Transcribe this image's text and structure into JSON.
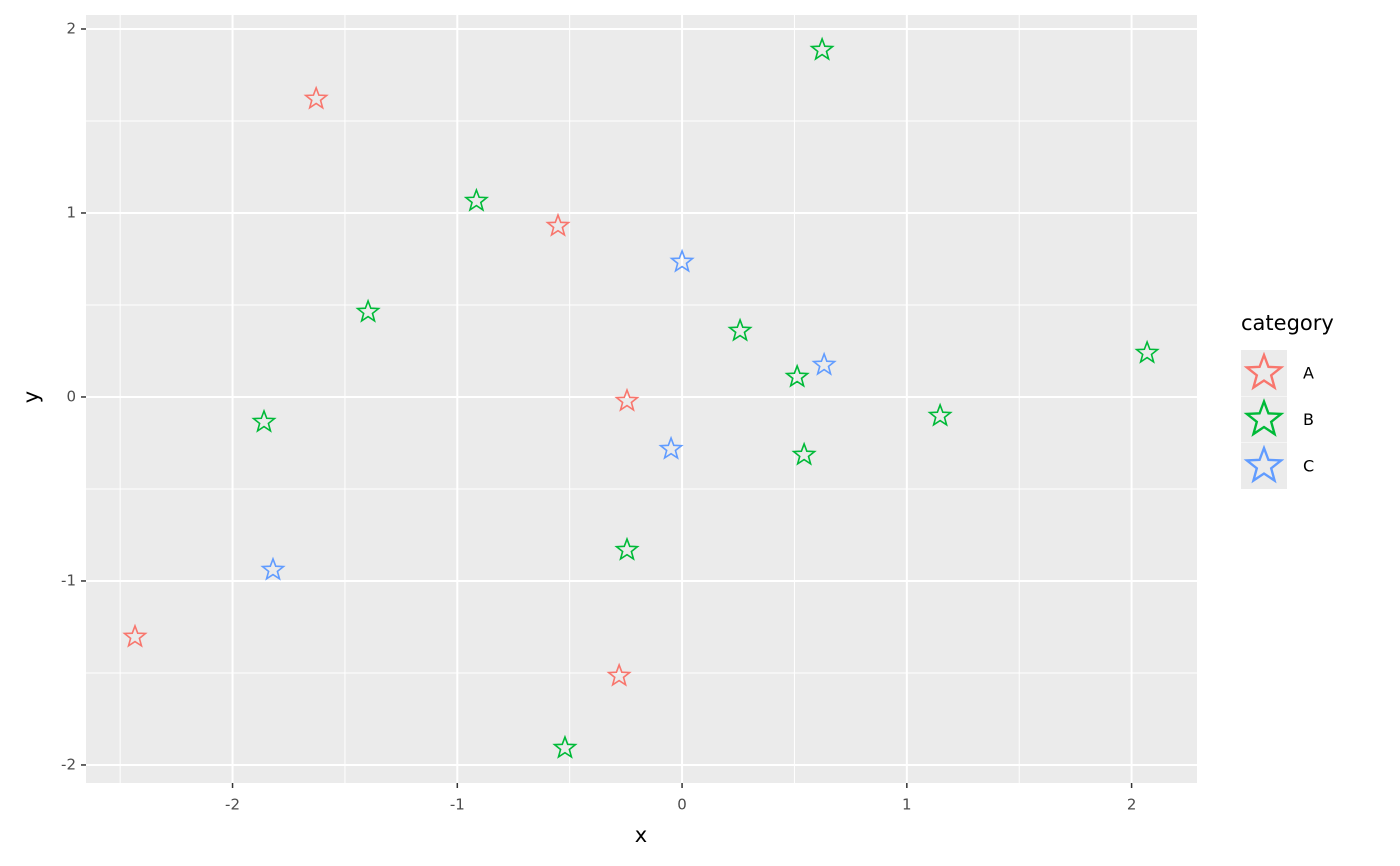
{
  "chart_data": {
    "type": "scatter",
    "x_label": "x",
    "y_label": "y",
    "legend_title": "category",
    "xlim": [
      -2.652,
      2.291
    ],
    "ylim": [
      -2.098,
      2.076
    ],
    "xticks": [
      -2,
      -1,
      0,
      1,
      2
    ],
    "yticks": [
      -2,
      -1,
      0,
      1,
      2
    ],
    "xminor": [
      -2.5,
      -1.5,
      -0.5,
      0.5,
      1.5
    ],
    "yminor": [
      -1.5,
      -0.5,
      0.5,
      1.5
    ],
    "grid": true,
    "legend_position": "right",
    "marker": "star",
    "series": [
      {
        "name": "A",
        "color": "#F8766D",
        "x": [
          -1.628,
          -0.552,
          -0.245,
          -2.434,
          -0.28
        ],
        "values": [
          1.62,
          0.929,
          -0.022,
          -1.304,
          -1.516
        ]
      },
      {
        "name": "B",
        "color": "#00BA38",
        "x": [
          0.623,
          -0.915,
          -1.397,
          0.258,
          0.512,
          2.069,
          -1.86,
          1.148,
          0.543,
          -0.245,
          -0.521
        ],
        "values": [
          1.886,
          1.065,
          0.462,
          0.359,
          0.109,
          0.239,
          -0.136,
          -0.103,
          -0.315,
          -0.832,
          -1.908
        ]
      },
      {
        "name": "C",
        "color": "#619CFF",
        "x": [
          0.0,
          0.632,
          -0.049,
          -1.82
        ],
        "values": [
          0.734,
          0.174,
          -0.283,
          -0.94
        ]
      }
    ]
  }
}
